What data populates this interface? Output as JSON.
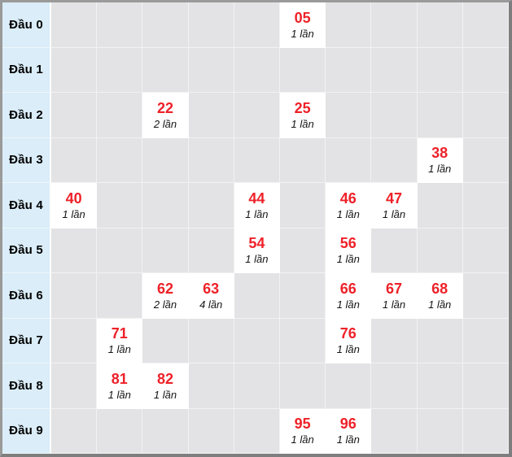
{
  "widget": {
    "type": "lottery-head-digit-frequency-table",
    "columns_per_row": 10,
    "colors": {
      "accent_number_red": "#ee2129",
      "label_column_bg": "#daedf8",
      "empty_cell_bg": "#e3e3e5",
      "filled_cell_bg": "#ffffff",
      "frame_border": "#8e8e8e"
    }
  },
  "grid": {
    "rows": [
      {
        "label": "Đầu 0",
        "cells": [
          {
            "col": 5,
            "number": "05",
            "count": "1 lần"
          }
        ]
      },
      {
        "label": "Đầu 1",
        "cells": []
      },
      {
        "label": "Đầu 2",
        "cells": [
          {
            "col": 2,
            "number": "22",
            "count": "2 lần"
          },
          {
            "col": 5,
            "number": "25",
            "count": "1 lần"
          }
        ]
      },
      {
        "label": "Đầu 3",
        "cells": [
          {
            "col": 8,
            "number": "38",
            "count": "1 lần"
          }
        ]
      },
      {
        "label": "Đầu 4",
        "cells": [
          {
            "col": 0,
            "number": "40",
            "count": "1 lần"
          },
          {
            "col": 4,
            "number": "44",
            "count": "1 lần"
          },
          {
            "col": 6,
            "number": "46",
            "count": "1 lần"
          },
          {
            "col": 7,
            "number": "47",
            "count": "1 lần"
          }
        ]
      },
      {
        "label": "Đầu 5",
        "cells": [
          {
            "col": 4,
            "number": "54",
            "count": "1 lần"
          },
          {
            "col": 6,
            "number": "56",
            "count": "1 lần"
          }
        ]
      },
      {
        "label": "Đầu 6",
        "cells": [
          {
            "col": 2,
            "number": "62",
            "count": "2 lần"
          },
          {
            "col": 3,
            "number": "63",
            "count": "4 lần"
          },
          {
            "col": 6,
            "number": "66",
            "count": "1 lần"
          },
          {
            "col": 7,
            "number": "67",
            "count": "1 lần"
          },
          {
            "col": 8,
            "number": "68",
            "count": "1 lần"
          }
        ]
      },
      {
        "label": "Đầu 7",
        "cells": [
          {
            "col": 1,
            "number": "71",
            "count": "1 lần"
          },
          {
            "col": 6,
            "number": "76",
            "count": "1 lần"
          }
        ]
      },
      {
        "label": "Đầu 8",
        "cells": [
          {
            "col": 1,
            "number": "81",
            "count": "1 lần"
          },
          {
            "col": 2,
            "number": "82",
            "count": "1 lần"
          }
        ]
      },
      {
        "label": "Đầu 9",
        "cells": [
          {
            "col": 5,
            "number": "95",
            "count": "1 lần"
          },
          {
            "col": 6,
            "number": "96",
            "count": "1 lần"
          }
        ]
      }
    ]
  },
  "chart_data": {
    "type": "heatmap",
    "title": "",
    "row_labels": [
      "Đầu 0",
      "Đầu 1",
      "Đầu 2",
      "Đầu 3",
      "Đầu 4",
      "Đầu 5",
      "Đầu 6",
      "Đầu 7",
      "Đầu 8",
      "Đầu 9"
    ],
    "entries": [
      {
        "number": "05",
        "times": 1
      },
      {
        "number": "22",
        "times": 2
      },
      {
        "number": "25",
        "times": 1
      },
      {
        "number": "38",
        "times": 1
      },
      {
        "number": "40",
        "times": 1
      },
      {
        "number": "44",
        "times": 1
      },
      {
        "number": "46",
        "times": 1
      },
      {
        "number": "47",
        "times": 1
      },
      {
        "number": "54",
        "times": 1
      },
      {
        "number": "56",
        "times": 1
      },
      {
        "number": "62",
        "times": 2
      },
      {
        "number": "63",
        "times": 4
      },
      {
        "number": "66",
        "times": 1
      },
      {
        "number": "67",
        "times": 1
      },
      {
        "number": "68",
        "times": 1
      },
      {
        "number": "71",
        "times": 1
      },
      {
        "number": "76",
        "times": 1
      },
      {
        "number": "81",
        "times": 1
      },
      {
        "number": "82",
        "times": 1
      },
      {
        "number": "95",
        "times": 1
      },
      {
        "number": "96",
        "times": 1
      }
    ]
  }
}
